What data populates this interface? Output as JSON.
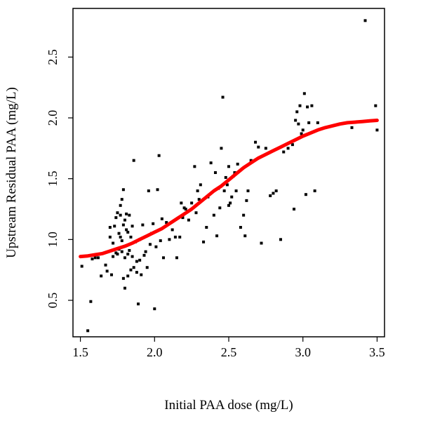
{
  "chart_data": {
    "type": "scatter",
    "xlabel": "Initial PAA dose (mg/L)",
    "ylabel": "Upstream Residual PAA (mg/L)",
    "xlim": [
      1.45,
      3.55
    ],
    "ylim": [
      0.2,
      2.9
    ],
    "xticks": [
      "1.5",
      "2.0",
      "2.5",
      "3.0",
      "3.5"
    ],
    "yticks": [
      "0.5",
      "1.0",
      "1.5",
      "2.0",
      "2.5"
    ],
    "grid": false,
    "point_color": "#000000",
    "fit_color": "#ff0000",
    "series": [
      {
        "kind": "points",
        "x": [
          1.51,
          1.55,
          1.57,
          1.58,
          1.6,
          1.62,
          1.64,
          1.67,
          1.68,
          1.7,
          1.7,
          1.71,
          1.72,
          1.72,
          1.73,
          1.74,
          1.74,
          1.75,
          1.75,
          1.76,
          1.76,
          1.77,
          1.77,
          1.77,
          1.78,
          1.78,
          1.78,
          1.79,
          1.79,
          1.79,
          1.8,
          1.8,
          1.8,
          1.81,
          1.81,
          1.81,
          1.82,
          1.82,
          1.82,
          1.83,
          1.83,
          1.84,
          1.84,
          1.85,
          1.85,
          1.86,
          1.86,
          1.87,
          1.88,
          1.88,
          1.89,
          1.9,
          1.9,
          1.91,
          1.92,
          1.93,
          1.94,
          1.95,
          1.96,
          1.97,
          1.98,
          1.99,
          2.0,
          2.01,
          2.02,
          2.03,
          2.04,
          2.05,
          2.06,
          2.08,
          2.1,
          2.12,
          2.14,
          2.15,
          2.17,
          2.18,
          2.19,
          2.2,
          2.21,
          2.23,
          2.25,
          2.27,
          2.28,
          2.29,
          2.3,
          2.31,
          2.33,
          2.35,
          2.36,
          2.38,
          2.4,
          2.41,
          2.42,
          2.43,
          2.44,
          2.45,
          2.46,
          2.47,
          2.48,
          2.49,
          2.5,
          2.5,
          2.51,
          2.52,
          2.53,
          2.54,
          2.55,
          2.56,
          2.58,
          2.6,
          2.61,
          2.62,
          2.63,
          2.65,
          2.68,
          2.7,
          2.72,
          2.75,
          2.78,
          2.8,
          2.82,
          2.85,
          2.87,
          2.9,
          2.93,
          2.94,
          2.95,
          2.96,
          2.97,
          2.98,
          2.99,
          3.0,
          3.01,
          3.02,
          3.03,
          3.04,
          3.06,
          3.08,
          3.1,
          3.33,
          3.42,
          3.49,
          3.5
        ],
        "y": [
          0.78,
          0.25,
          0.49,
          0.84,
          0.85,
          0.85,
          0.7,
          0.79,
          0.74,
          1.02,
          1.1,
          0.71,
          0.86,
          0.97,
          1.11,
          1.18,
          0.89,
          1.22,
          0.88,
          1.05,
          0.92,
          1.02,
          1.2,
          1.28,
          1.33,
          0.9,
          0.99,
          1.41,
          0.68,
          1.12,
          1.16,
          0.85,
          0.6,
          1.21,
          0.95,
          1.08,
          1.06,
          0.7,
          0.88,
          0.91,
          1.2,
          0.75,
          1.02,
          1.11,
          0.86,
          0.77,
          1.65,
          0.98,
          0.73,
          0.82,
          0.47,
          1.0,
          0.83,
          0.71,
          1.12,
          0.87,
          0.9,
          0.77,
          1.4,
          0.96,
          1.05,
          1.13,
          0.43,
          0.94,
          1.41,
          1.69,
          0.99,
          1.17,
          0.85,
          1.14,
          1.0,
          1.08,
          1.02,
          0.85,
          1.02,
          1.3,
          1.18,
          1.26,
          1.25,
          1.16,
          1.3,
          1.6,
          1.22,
          1.4,
          1.33,
          1.45,
          0.98,
          1.1,
          1.35,
          1.63,
          1.2,
          1.55,
          1.03,
          1.42,
          1.26,
          1.75,
          2.17,
          1.4,
          1.51,
          1.45,
          1.6,
          1.28,
          1.3,
          1.35,
          1.52,
          1.55,
          1.4,
          1.62,
          1.1,
          1.2,
          1.03,
          1.32,
          1.4,
          1.65,
          1.8,
          1.76,
          0.97,
          1.75,
          1.36,
          1.38,
          1.4,
          1.0,
          1.72,
          1.75,
          1.78,
          1.25,
          1.98,
          2.05,
          1.95,
          2.1,
          1.87,
          1.9,
          2.2,
          1.37,
          2.09,
          1.96,
          2.1,
          1.4,
          1.96,
          1.92,
          2.8,
          2.1,
          1.9
        ]
      },
      {
        "kind": "fit",
        "x": [
          1.5,
          1.55,
          1.6,
          1.65,
          1.7,
          1.75,
          1.8,
          1.85,
          1.9,
          1.95,
          2.0,
          2.05,
          2.1,
          2.15,
          2.2,
          2.25,
          2.3,
          2.35,
          2.4,
          2.45,
          2.5,
          2.55,
          2.6,
          2.65,
          2.7,
          2.75,
          2.8,
          2.85,
          2.9,
          2.95,
          3.0,
          3.05,
          3.1,
          3.15,
          3.2,
          3.25,
          3.3,
          3.35,
          3.4,
          3.45,
          3.5
        ],
        "y": [
          0.86,
          0.865,
          0.875,
          0.885,
          0.905,
          0.925,
          0.945,
          0.97,
          1.0,
          1.03,
          1.06,
          1.09,
          1.13,
          1.17,
          1.21,
          1.25,
          1.3,
          1.35,
          1.4,
          1.44,
          1.49,
          1.54,
          1.59,
          1.63,
          1.67,
          1.7,
          1.73,
          1.76,
          1.79,
          1.82,
          1.85,
          1.875,
          1.9,
          1.92,
          1.935,
          1.95,
          1.96,
          1.965,
          1.97,
          1.975,
          1.98
        ]
      }
    ]
  }
}
